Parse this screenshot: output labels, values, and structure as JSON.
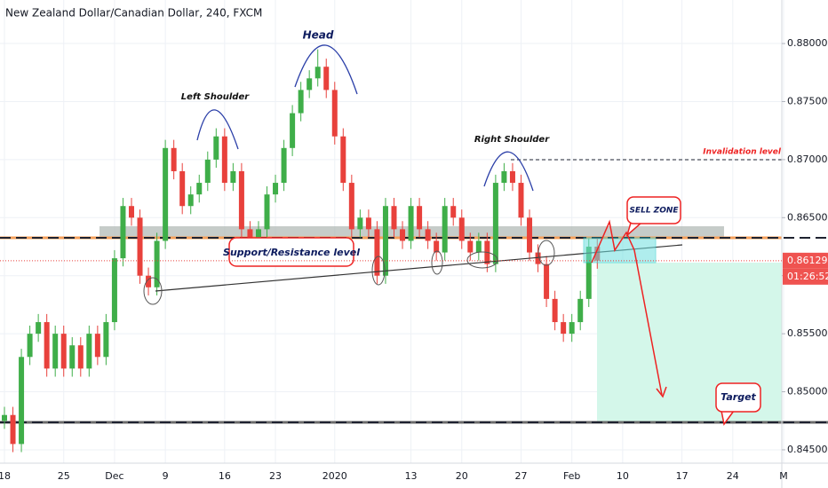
{
  "chart_data": {
    "type": "candlestick",
    "title": "New Zealand Dollar/Canadian Dollar, 240, FXCM",
    "categories": [
      "18",
      null,
      null,
      null,
      null,
      null,
      null,
      "25",
      null,
      null,
      null,
      null,
      null,
      "Dec",
      null,
      null,
      null,
      null,
      null,
      "9",
      null,
      null,
      null,
      null,
      null,
      null,
      "16",
      null,
      null,
      null,
      null,
      null,
      "23",
      null,
      null,
      null,
      null,
      null,
      null,
      "2020",
      null,
      null,
      null,
      null,
      null,
      null,
      null,
      null,
      "13",
      null,
      null,
      null,
      null,
      null,
      "20",
      null,
      null,
      null,
      null,
      null,
      null,
      "27",
      null,
      null,
      null,
      null,
      null,
      "Feb",
      null,
      null,
      null,
      null,
      null,
      "10",
      null,
      null,
      null,
      null,
      null,
      null,
      "17",
      null,
      null,
      null,
      null,
      null,
      "24",
      null,
      null,
      null,
      null,
      null,
      "M"
    ],
    "open": [
      0.8475,
      0.848,
      0.8455,
      0.853,
      0.855,
      0.856,
      0.852,
      0.855,
      0.852,
      0.854,
      0.852,
      0.855,
      0.853,
      0.856,
      0.8615,
      0.866,
      0.865,
      0.86,
      0.859,
      0.863,
      0.871,
      0.869,
      0.866,
      0.867,
      0.868,
      0.87,
      0.872,
      0.868,
      0.869,
      0.864,
      0.862,
      0.864,
      0.867,
      0.868,
      0.871,
      0.874,
      0.876,
      0.877,
      0.878,
      0.876,
      0.872,
      0.868,
      0.864,
      0.865,
      0.864,
      0.86,
      0.866,
      0.864,
      0.863,
      0.866,
      0.864,
      0.863,
      0.862,
      0.866,
      0.865,
      0.863,
      0.862,
      0.863,
      0.861,
      0.868,
      0.869,
      0.868,
      0.865,
      0.862,
      0.861,
      0.858,
      0.856,
      0.855,
      0.856,
      0.858,
      0.8625,
      null,
      null,
      null,
      null,
      null,
      null,
      null,
      null,
      null,
      null,
      null,
      null,
      null,
      null,
      null,
      null,
      null,
      null,
      null,
      null,
      null,
      null
    ],
    "high": [
      0.8487,
      0.8487,
      0.8537,
      0.8557,
      0.8567,
      0.8567,
      0.8557,
      0.8557,
      0.8547,
      0.8547,
      0.8557,
      0.8557,
      0.8567,
      0.8622,
      0.8667,
      0.8667,
      0.8657,
      0.8607,
      0.8637,
      0.8717,
      0.8717,
      0.8697,
      0.8677,
      0.8687,
      0.8707,
      0.8727,
      0.8727,
      0.8697,
      0.8697,
      0.8647,
      0.8647,
      0.8677,
      0.8687,
      0.8717,
      0.8747,
      0.8767,
      0.8777,
      0.8795,
      0.8787,
      0.8767,
      0.8727,
      0.8687,
      0.8657,
      0.8657,
      0.8647,
      0.8667,
      0.8667,
      0.8647,
      0.8667,
      0.8667,
      0.8647,
      0.8637,
      0.8667,
      0.8667,
      0.8657,
      0.8637,
      0.8637,
      0.8637,
      0.8687,
      0.8697,
      0.8697,
      0.8687,
      0.8657,
      0.8627,
      0.8617,
      0.8587,
      0.8567,
      0.8567,
      0.8587,
      0.8632,
      0.8632,
      null,
      null,
      null,
      null,
      null,
      null,
      null,
      null,
      null,
      null,
      null,
      null,
      null,
      null,
      null,
      null,
      null,
      null,
      null,
      null,
      null,
      null
    ],
    "low": [
      0.8468,
      0.8448,
      0.8448,
      0.8523,
      0.8543,
      0.8513,
      0.8513,
      0.8513,
      0.8513,
      0.8513,
      0.8513,
      0.8523,
      0.8523,
      0.8553,
      0.8608,
      0.8643,
      0.8593,
      0.8583,
      0.8583,
      0.8623,
      0.8683,
      0.8653,
      0.8653,
      0.8663,
      0.8673,
      0.8693,
      0.8673,
      0.8673,
      0.8633,
      0.8613,
      0.8613,
      0.8633,
      0.8663,
      0.8673,
      0.8703,
      0.8733,
      0.8753,
      0.8763,
      0.8753,
      0.8713,
      0.8673,
      0.8633,
      0.8633,
      0.8633,
      0.8593,
      0.8593,
      0.8633,
      0.8623,
      0.8623,
      0.8633,
      0.8623,
      0.8613,
      0.8613,
      0.8643,
      0.8623,
      0.8613,
      0.8613,
      0.8603,
      0.8603,
      0.8673,
      0.8673,
      0.8643,
      0.8613,
      0.8603,
      0.8573,
      0.8553,
      0.8543,
      0.8543,
      0.8553,
      0.8573,
      0.8606,
      null,
      null,
      null,
      null,
      null,
      null,
      null,
      null,
      null,
      null,
      null,
      null,
      null,
      null,
      null,
      null,
      null,
      null,
      null,
      null,
      null,
      null
    ],
    "close": [
      0.848,
      0.8455,
      0.853,
      0.855,
      0.856,
      0.852,
      0.855,
      0.852,
      0.854,
      0.852,
      0.855,
      0.853,
      0.856,
      0.8615,
      0.866,
      0.865,
      0.86,
      0.859,
      0.863,
      0.871,
      0.869,
      0.866,
      0.867,
      0.868,
      0.87,
      0.872,
      0.868,
      0.869,
      0.864,
      0.862,
      0.864,
      0.867,
      0.868,
      0.871,
      0.874,
      0.876,
      0.877,
      0.878,
      0.876,
      0.872,
      0.868,
      0.864,
      0.865,
      0.864,
      0.86,
      0.866,
      0.864,
      0.863,
      0.866,
      0.864,
      0.863,
      0.862,
      0.866,
      0.865,
      0.863,
      0.862,
      0.863,
      0.861,
      0.868,
      0.869,
      0.868,
      0.865,
      0.862,
      0.861,
      0.858,
      0.856,
      0.855,
      0.856,
      0.858,
      0.8625,
      0.8613,
      null,
      null,
      null,
      null,
      null,
      null,
      null,
      null,
      null,
      null,
      null,
      null,
      null,
      null,
      null,
      null,
      null,
      null,
      null,
      null,
      null,
      null
    ],
    "up_color": "#3fae49",
    "down_color": "#e8413c",
    "ylim": [
      0.84385,
      0.88375
    ],
    "yticks": [
      {
        "value": 0.845,
        "label": "0.84500"
      },
      {
        "value": 0.85,
        "label": "0.85000"
      },
      {
        "value": 0.855,
        "label": "0.85500"
      },
      {
        "value": 0.86,
        "label": "0.86000"
      },
      {
        "value": 0.865,
        "label": "0.86500"
      },
      {
        "value": 0.87,
        "label": "0.87000"
      },
      {
        "value": 0.875,
        "label": "0.87500"
      },
      {
        "value": 0.88,
        "label": "0.88000"
      }
    ],
    "grid": true,
    "last_price": 0.86129,
    "countdown": "01:26:52",
    "annotations": {
      "head": "Head",
      "left_shoulder": "Left Shoulder",
      "right_shoulder": "Right Shoulder",
      "support_resistance": "Support/Resistance level",
      "sell_zone": "SELL ZONE",
      "target": "Target",
      "invalidation": "Invalidation level"
    }
  }
}
